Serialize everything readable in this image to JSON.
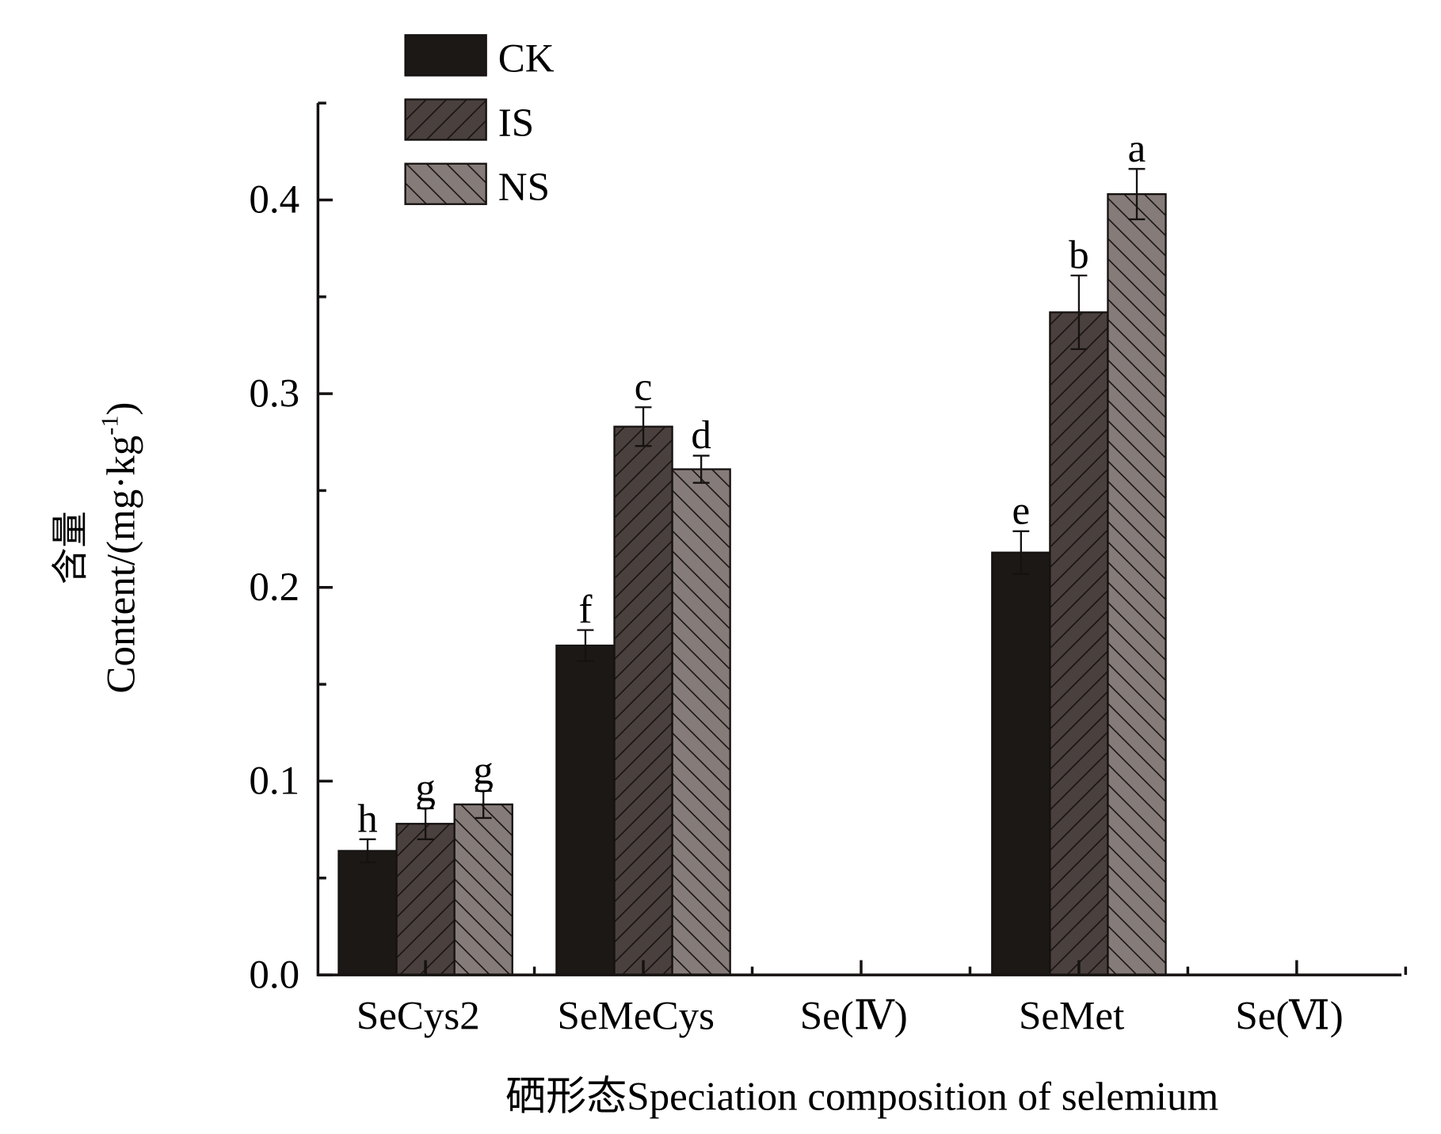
{
  "chart_data": {
    "type": "bar",
    "title": "",
    "xlabel": "硒形态Speciation composition of selemium",
    "ylabel_cn": "含量",
    "ylabel": "Content/(mg·kg",
    "ylabel_sup": "-1",
    "ylabel_end": ")",
    "ylim": [
      0,
      0.45
    ],
    "yticks": [
      "0.0",
      "0.1",
      "0.2",
      "0.3",
      "0.4"
    ],
    "categories": [
      "SeCys2",
      "SeMeCys",
      "Se(Ⅳ)",
      "SeMet",
      "Se(Ⅵ)"
    ],
    "legend_position": "top-left",
    "grid": false,
    "series": [
      {
        "name": "CK",
        "color": "#1c1816",
        "hatch": "none",
        "values": [
          0.064,
          0.17,
          0,
          0.218,
          0
        ],
        "errors": [
          0.006,
          0.008,
          0,
          0.011,
          0
        ],
        "letters": [
          "h",
          "f",
          "",
          "e",
          ""
        ]
      },
      {
        "name": "IS",
        "color": "#4a403d",
        "hatch": "forward",
        "values": [
          0.078,
          0.283,
          0,
          0.342,
          0
        ],
        "errors": [
          0.008,
          0.01,
          0,
          0.019,
          0
        ],
        "letters": [
          "g",
          "c",
          "",
          "b",
          ""
        ]
      },
      {
        "name": "NS",
        "color": "#857b78",
        "hatch": "backward",
        "values": [
          0.088,
          0.261,
          0,
          0.403,
          0
        ],
        "errors": [
          0.007,
          0.007,
          0,
          0.013,
          0
        ],
        "letters": [
          "g",
          "d",
          "",
          "a",
          ""
        ]
      }
    ]
  }
}
